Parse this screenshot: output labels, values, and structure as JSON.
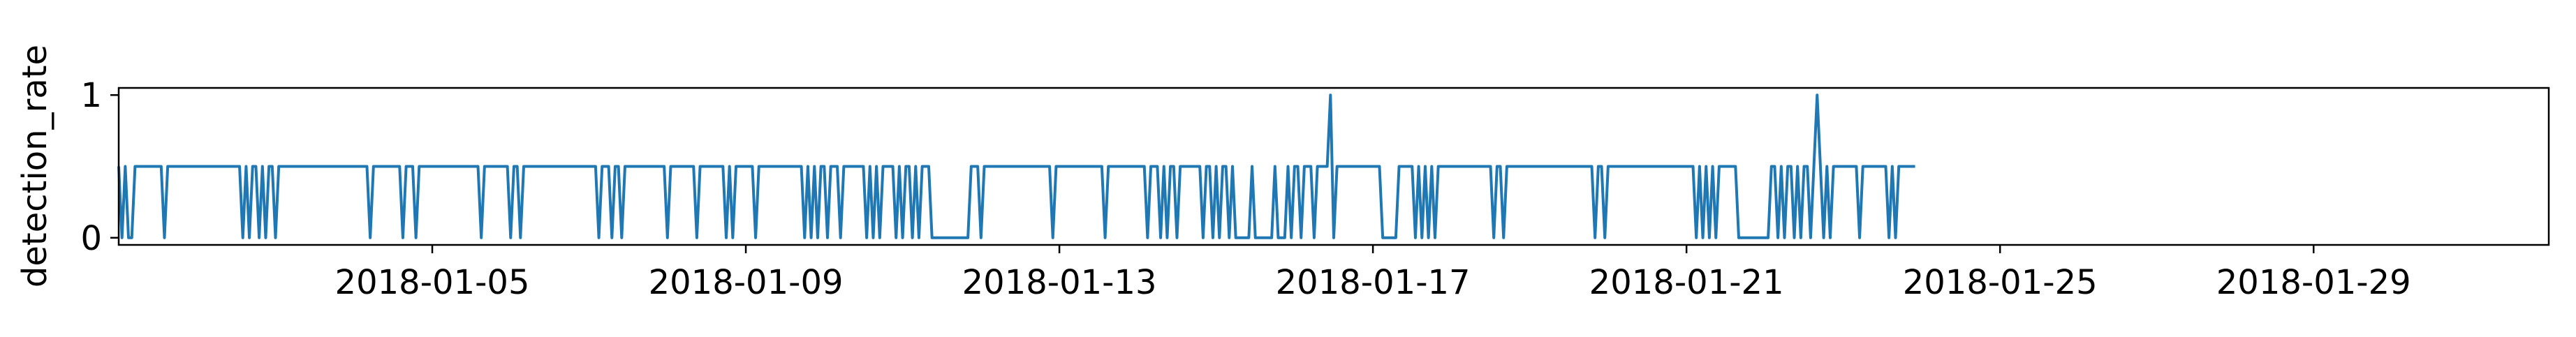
{
  "chart_data": {
    "type": "line",
    "title": "",
    "xlabel": "",
    "ylabel": "detection_rate",
    "x_range": [
      "2018-01-01",
      "2018-02-01"
    ],
    "ylim": [
      -0.05,
      1.05
    ],
    "yticks": [
      0,
      1
    ],
    "xticks": [
      "2018-01-05",
      "2018-01-09",
      "2018-01-13",
      "2018-01-17",
      "2018-01-21",
      "2018-01-25",
      "2018-01-29"
    ],
    "grid": false,
    "legend": "none",
    "series": [
      {
        "color": "#1f77b4",
        "x_start": "2018-01-01T00:00",
        "x_step_hours": 1,
        "values": [
          0.5,
          0,
          0.5,
          0,
          0,
          0.5,
          0.5,
          0.5,
          0.5,
          0.5,
          0.5,
          0.5,
          0.5,
          0.5,
          0,
          0.5,
          0.5,
          0.5,
          0.5,
          0.5,
          0.5,
          0.5,
          0.5,
          0.5,
          0.5,
          0.5,
          0.5,
          0.5,
          0.5,
          0.5,
          0.5,
          0.5,
          0.5,
          0.5,
          0.5,
          0.5,
          0.5,
          0.5,
          0,
          0.5,
          0,
          0.5,
          0.5,
          0,
          0.5,
          0,
          0.5,
          0.5,
          0,
          0.5,
          0.5,
          0.5,
          0.5,
          0.5,
          0.5,
          0.5,
          0.5,
          0.5,
          0.5,
          0.5,
          0.5,
          0.5,
          0.5,
          0.5,
          0.5,
          0.5,
          0.5,
          0.5,
          0.5,
          0.5,
          0.5,
          0.5,
          0.5,
          0.5,
          0.5,
          0.5,
          0.5,
          0,
          0.5,
          0.5,
          0.5,
          0.5,
          0.5,
          0.5,
          0.5,
          0.5,
          0.5,
          0,
          0.5,
          0.5,
          0.5,
          0,
          0.5,
          0.5,
          0.5,
          0.5,
          0.5,
          0.5,
          0.5,
          0.5,
          0.5,
          0.5,
          0.5,
          0.5,
          0.5,
          0.5,
          0.5,
          0.5,
          0.5,
          0.5,
          0.5,
          0,
          0.5,
          0.5,
          0.5,
          0.5,
          0.5,
          0.5,
          0.5,
          0.5,
          0,
          0.5,
          0.5,
          0,
          0.5,
          0.5,
          0.5,
          0.5,
          0.5,
          0.5,
          0.5,
          0.5,
          0.5,
          0.5,
          0.5,
          0.5,
          0.5,
          0.5,
          0.5,
          0.5,
          0.5,
          0.5,
          0.5,
          0.5,
          0.5,
          0.5,
          0.5,
          0,
          0.5,
          0.5,
          0.5,
          0,
          0.5,
          0.5,
          0,
          0.5,
          0.5,
          0.5,
          0.5,
          0.5,
          0.5,
          0.5,
          0.5,
          0.5,
          0.5,
          0.5,
          0.5,
          0.5,
          0,
          0.5,
          0.5,
          0.5,
          0.5,
          0.5,
          0.5,
          0.5,
          0.5,
          0,
          0.5,
          0.5,
          0.5,
          0.5,
          0.5,
          0.5,
          0.5,
          0.5,
          0,
          0.5,
          0,
          0.5,
          0.5,
          0.5,
          0.5,
          0.5,
          0.5,
          0,
          0.5,
          0.5,
          0.5,
          0.5,
          0.5,
          0.5,
          0.5,
          0.5,
          0.5,
          0.5,
          0.5,
          0.5,
          0.5,
          0.5,
          0,
          0.5,
          0,
          0.5,
          0,
          0.5,
          0.5,
          0,
          0.5,
          0.5,
          0.5,
          0,
          0.5,
          0.5,
          0.5,
          0.5,
          0.5,
          0.5,
          0.5,
          0,
          0.5,
          0,
          0.5,
          0,
          0.5,
          0.5,
          0.5,
          0.5,
          0,
          0.5,
          0,
          0.5,
          0.5,
          0,
          0.5,
          0,
          0.5,
          0.5,
          0.5,
          0,
          0,
          0,
          0,
          0,
          0,
          0,
          0,
          0,
          0,
          0,
          0,
          0.5,
          0.5,
          0.5,
          0,
          0.5,
          0.5,
          0.5,
          0.5,
          0.5,
          0.5,
          0.5,
          0.5,
          0.5,
          0.5,
          0.5,
          0.5,
          0.5,
          0.5,
          0.5,
          0.5,
          0.5,
          0.5,
          0.5,
          0.5,
          0.5,
          0,
          0.5,
          0.5,
          0.5,
          0.5,
          0.5,
          0.5,
          0.5,
          0.5,
          0.5,
          0.5,
          0.5,
          0.5,
          0.5,
          0.5,
          0.5,
          0,
          0.5,
          0.5,
          0.5,
          0.5,
          0.5,
          0.5,
          0.5,
          0.5,
          0.5,
          0.5,
          0.5,
          0.5,
          0,
          0.5,
          0.5,
          0.5,
          0,
          0.5,
          0,
          0.5,
          0.5,
          0,
          0.5,
          0.5,
          0.5,
          0.5,
          0.5,
          0.5,
          0.5,
          0,
          0.5,
          0.5,
          0,
          0.5,
          0,
          0.5,
          0.5,
          0,
          0.5,
          0,
          0,
          0,
          0,
          0,
          0.5,
          0,
          0,
          0,
          0,
          0,
          0,
          0.5,
          0,
          0,
          0,
          0.5,
          0,
          0.5,
          0.5,
          0,
          0.5,
          0.5,
          0.5,
          0,
          0.5,
          0.5,
          0.5,
          0.5,
          1,
          0,
          0.5,
          0.5,
          0.5,
          0.5,
          0.5,
          0.5,
          0.5,
          0.5,
          0.5,
          0.5,
          0.5,
          0.5,
          0.5,
          0.5,
          0,
          0,
          0,
          0,
          0,
          0.5,
          0.5,
          0.5,
          0.5,
          0.5,
          0,
          0.5,
          0,
          0.5,
          0,
          0.5,
          0,
          0.5,
          0.5,
          0.5,
          0.5,
          0.5,
          0.5,
          0.5,
          0.5,
          0.5,
          0.5,
          0.5,
          0.5,
          0.5,
          0.5,
          0.5,
          0.5,
          0.5,
          0,
          0.5,
          0.5,
          0,
          0.5,
          0.5,
          0.5,
          0.5,
          0.5,
          0.5,
          0.5,
          0.5,
          0.5,
          0.5,
          0.5,
          0.5,
          0.5,
          0.5,
          0.5,
          0.5,
          0.5,
          0.5,
          0.5,
          0.5,
          0.5,
          0.5,
          0.5,
          0.5,
          0.5,
          0.5,
          0.5,
          0,
          0.5,
          0.5,
          0,
          0.5,
          0.5,
          0.5,
          0.5,
          0.5,
          0.5,
          0.5,
          0.5,
          0.5,
          0.5,
          0.5,
          0.5,
          0.5,
          0.5,
          0.5,
          0.5,
          0.5,
          0.5,
          0.5,
          0.5,
          0.5,
          0.5,
          0.5,
          0.5,
          0.5,
          0.5,
          0.5,
          0,
          0.5,
          0,
          0.5,
          0,
          0.5,
          0,
          0.5,
          0.5,
          0.5,
          0.5,
          0.5,
          0.5,
          0,
          0,
          0,
          0,
          0,
          0,
          0,
          0,
          0,
          0,
          0.5,
          0.5,
          0,
          0.5,
          0,
          0.5,
          0.5,
          0,
          0.5,
          0,
          0.5,
          0.5,
          0,
          0.5,
          1,
          0.5,
          0,
          0.5,
          0,
          0.5,
          0.5,
          0.5,
          0.5,
          0.5,
          0.5,
          0.5,
          0.5,
          0,
          0.5,
          0.5,
          0.5,
          0.5,
          0.5,
          0.5,
          0.5,
          0.5,
          0,
          0.5,
          0,
          0.5,
          0.5,
          0.5,
          0.5,
          0.5,
          0.5
        ]
      }
    ]
  }
}
